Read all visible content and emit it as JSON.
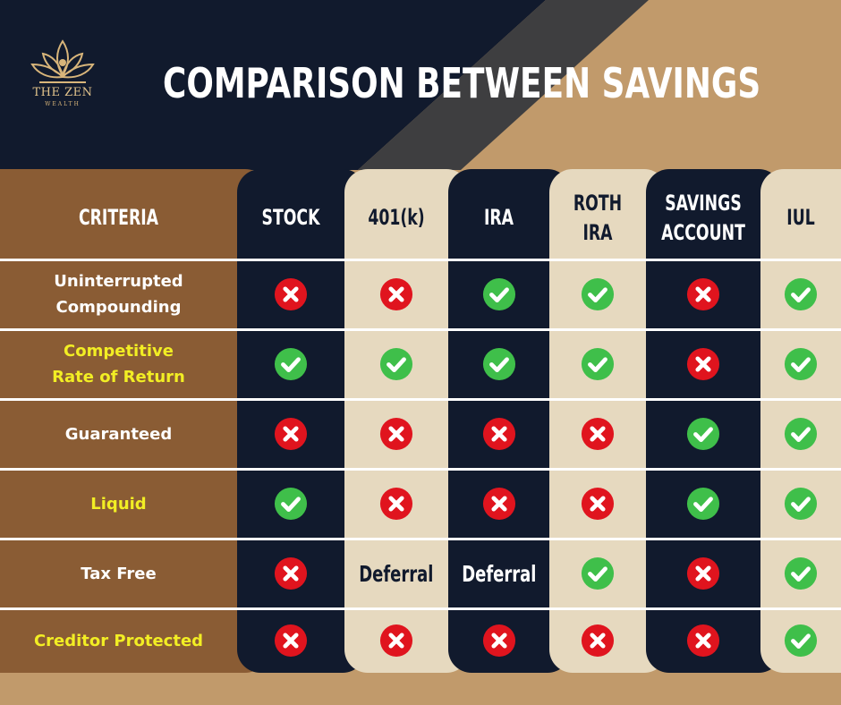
{
  "brand": {
    "name": "THE ZEN",
    "sub": "WEALTH",
    "logo_icon": "lotus-icon",
    "gold": "#d8b57a"
  },
  "title": "COMPARISON BETWEEN SAVINGS",
  "colors": {
    "navy": "#111a2d",
    "beige": "#e6d9bf",
    "brown": "#8a5c34",
    "tan": "#c19a6b",
    "check": "#3fbf4a",
    "cross": "#e0141e",
    "highlight": "#f2ee24"
  },
  "table": {
    "criteria_header": "CRITERIA",
    "columns": [
      {
        "label": "STOCK",
        "lines": [
          "STOCK"
        ],
        "theme": "dark"
      },
      {
        "label": "401(k)",
        "lines": [
          "401(k)"
        ],
        "theme": "light"
      },
      {
        "label": "IRA",
        "lines": [
          "IRA"
        ],
        "theme": "dark"
      },
      {
        "label": "ROTH IRA",
        "lines": [
          "ROTH",
          "IRA"
        ],
        "theme": "light"
      },
      {
        "label": "SAVINGS ACCOUNT",
        "lines": [
          "SAVINGS",
          "ACCOUNT"
        ],
        "theme": "dark"
      },
      {
        "label": "IUL",
        "lines": [
          "IUL"
        ],
        "theme": "light"
      }
    ],
    "rows": [
      {
        "label": "Uninterrupted Compounding",
        "lines": [
          "Uninterrupted",
          "Compounding"
        ],
        "highlight": false,
        "values": [
          "no",
          "no",
          "yes",
          "yes",
          "no",
          "yes"
        ]
      },
      {
        "label": "Competitive Rate of Return",
        "lines": [
          "Competitive",
          "Rate of Return"
        ],
        "highlight": true,
        "values": [
          "yes",
          "yes",
          "yes",
          "yes",
          "no",
          "yes"
        ]
      },
      {
        "label": "Guaranteed",
        "lines": [
          "Guaranteed"
        ],
        "highlight": false,
        "values": [
          "no",
          "no",
          "no",
          "no",
          "yes",
          "yes"
        ]
      },
      {
        "label": "Liquid",
        "lines": [
          "Liquid"
        ],
        "highlight": true,
        "values": [
          "yes",
          "no",
          "no",
          "no",
          "yes",
          "yes"
        ]
      },
      {
        "label": "Tax Free",
        "lines": [
          "Tax Free"
        ],
        "highlight": false,
        "values": [
          "no",
          "Deferral",
          "Deferral",
          "yes",
          "no",
          "yes"
        ]
      },
      {
        "label": "Creditor Protected",
        "lines": [
          "Creditor Protected"
        ],
        "highlight": true,
        "values": [
          "no",
          "no",
          "no",
          "no",
          "no",
          "yes"
        ]
      }
    ]
  }
}
